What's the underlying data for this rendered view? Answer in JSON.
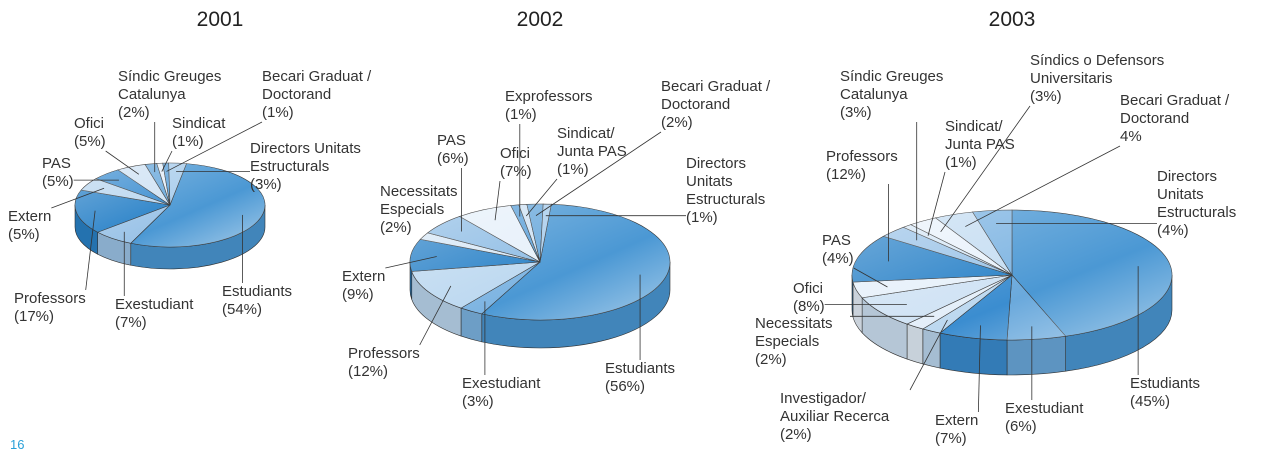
{
  "page_number": "16",
  "chart_data": [
    {
      "type": "pie",
      "title": "2001",
      "categories": [
        "Estudiants",
        "Exestudiant",
        "Professors",
        "Extern",
        "PAS",
        "Ofici",
        "Síndic Greuges Catalunya",
        "Sindicat",
        "Becari Graduat / Doctorand",
        "Directors Unitats Estructurals"
      ],
      "values": [
        54,
        7,
        17,
        5,
        5,
        5,
        2,
        1,
        1,
        3
      ],
      "value_labels": [
        "(54%)",
        "(7%)",
        "(17%)",
        "(5%)",
        "(5%)",
        "(5%)",
        "(2%)",
        "(1%)",
        "(1%)",
        "(3%)"
      ],
      "colors": [
        "#4b98d4",
        "#9cc4e8",
        "#2a82c8",
        "#b9d6ef",
        "#3b8dd0",
        "#cfe2f4",
        "#6aa9dc",
        "#e3eef9",
        "#5ea2da",
        "#a9cdec"
      ]
    },
    {
      "type": "pie",
      "title": "2002",
      "categories": [
        "Estudiants",
        "Exestudiant",
        "Professors",
        "Extern",
        "Necessitats Especials",
        "PAS",
        "Ofici",
        "Exprofessors",
        "Sindicat/ Junta PAS",
        "Becari Graduat / Doctorand",
        "Directors Unitats Estructurals"
      ],
      "values": [
        56,
        3,
        12,
        9,
        2,
        6,
        7,
        1,
        1,
        2,
        1
      ],
      "value_labels": [
        "(56%)",
        "(3%)",
        "(12%)",
        "(9%)",
        "(2%)",
        "(6%)",
        "(7%)",
        "(1%)",
        "(1%)",
        "(2%)",
        "(1%)"
      ],
      "colors": [
        "#4b98d4",
        "#7db4e2",
        "#bcd8f0",
        "#2a82c8",
        "#d6e7f6",
        "#8fbde5",
        "#e6f0fa",
        "#5ea2da",
        "#cfe2f4",
        "#6aa9dc",
        "#a9cdec"
      ]
    },
    {
      "type": "pie",
      "title": "2003",
      "categories": [
        "Estudiants",
        "Exestudiant",
        "Extern",
        "Investigador/ Auxiliar Recerca",
        "Necessitats Especials",
        "Ofici",
        "PAS",
        "Professors",
        "Síndic Greuges Catalunya",
        "Sindicat/ Junta PAS",
        "Síndics o Defensors Universitaris",
        "Becari Graduat / Doctorand",
        "Directors Unitats Estructurals"
      ],
      "values": [
        45,
        6,
        7,
        2,
        2,
        8,
        4,
        12,
        3,
        1,
        3,
        4,
        4
      ],
      "value_labels": [
        "(45%)",
        "(6%)",
        "(7%)",
        "(2%)",
        "(2%)",
        "(8%)",
        "(4%)",
        "(12%)",
        "(3%)",
        "(1%)",
        "(3%)",
        "4%",
        "(4%)"
      ],
      "colors": [
        "#4b98d4",
        "#6aa9dc",
        "#3b8dd0",
        "#bcd8f0",
        "#e3eef9",
        "#cfe2f4",
        "#e6f0fa",
        "#2a82c8",
        "#9cc4e8",
        "#d6e7f6",
        "#e9f2fb",
        "#c5ddf2",
        "#7db4e2"
      ]
    }
  ]
}
